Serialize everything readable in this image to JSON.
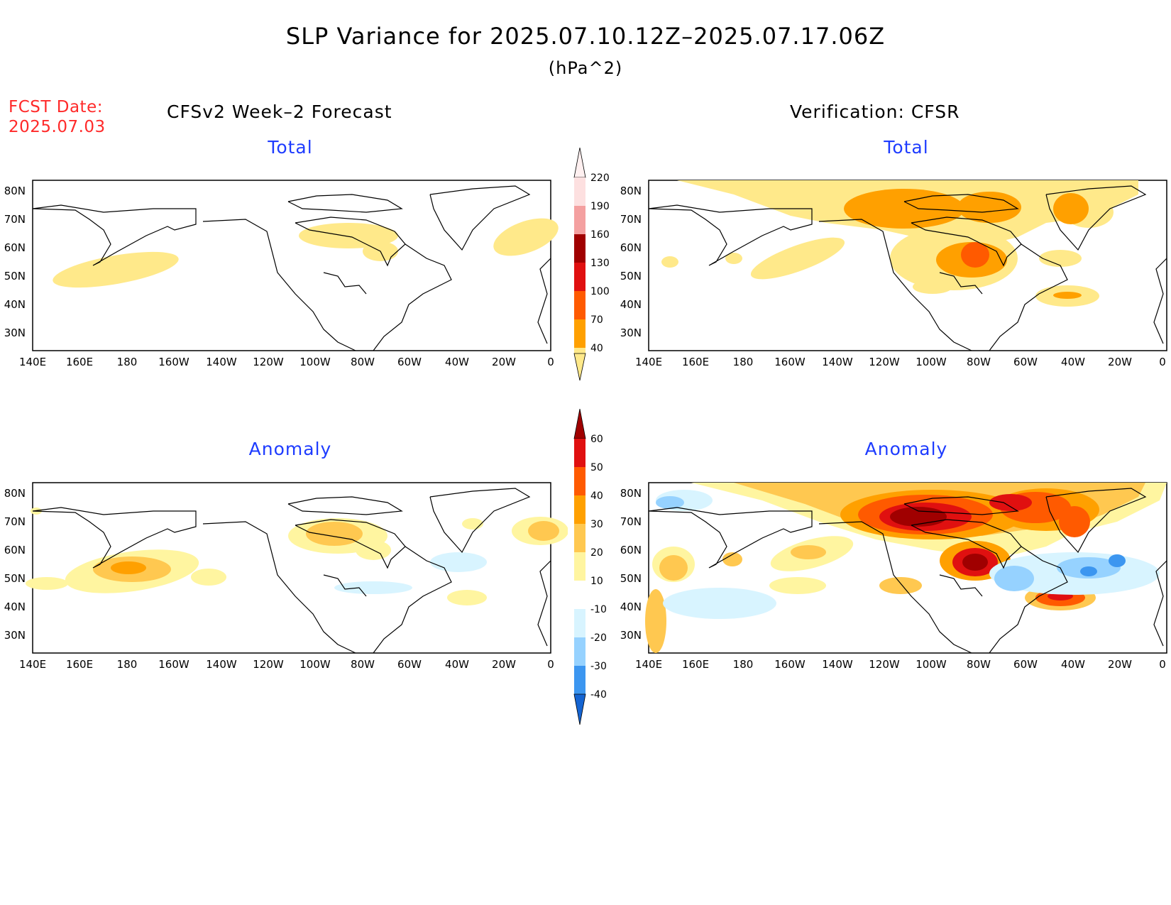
{
  "header": {
    "title": "SLP Variance for 2025.07.10.12Z–2025.07.17.06Z",
    "units": "(hPa^2)",
    "fcst_label": "FCST Date:",
    "fcst_date": "2025.07.03",
    "left_column": "CFSv2 Week–2 Forecast",
    "right_column": "Verification: CFSR"
  },
  "panels": {
    "fcst_total": "Total",
    "ver_total": "Total",
    "fcst_anom": "Anomaly",
    "ver_anom": "Anomaly"
  },
  "axes": {
    "lat_labels": [
      "80N",
      "70N",
      "60N",
      "50N",
      "40N",
      "30N"
    ],
    "lon_labels": [
      "140E",
      "160E",
      "180",
      "160W",
      "140W",
      "120W",
      "100W",
      "80W",
      "60W",
      "40W",
      "20W",
      "0"
    ]
  },
  "colorbars": {
    "total": {
      "levels": [
        "220",
        "190",
        "160",
        "130",
        "100",
        "70",
        "40"
      ],
      "colors": [
        "#fde0e0",
        "#f4a0a0",
        "#a00000",
        "#e01010",
        "#ff5a00",
        "#ffa000",
        "#ffe98a"
      ]
    },
    "anomaly": {
      "levels": [
        "60",
        "50",
        "40",
        "30",
        "20",
        "10",
        "-10",
        "-20",
        "-30",
        "-40"
      ],
      "colors": [
        "#a00000",
        "#e01010",
        "#ff5a00",
        "#ffa000",
        "#ffc850",
        "#fff5a0",
        "#ffffff",
        "#d8f4ff",
        "#96d2ff",
        "#3c96f0",
        "#1464d2"
      ]
    }
  },
  "chart_data": {
    "type": "heatmap",
    "title": "SLP Variance for 2025.07.10.12Z–2025.07.17.06Z",
    "units": "(hPa^2)",
    "lon_range": [
      "140E",
      "0"
    ],
    "lat_range": [
      "25N",
      "85N"
    ],
    "panels": [
      {
        "name": "CFSv2 Week–2 Forecast Total",
        "levels": [
          40,
          70,
          100,
          130,
          160,
          190,
          220
        ],
        "features": [
          "weak 40-70 over N Pacific near 180",
          "40-70 over Hudson Bay",
          "40-70 east of Greenland"
        ]
      },
      {
        "name": "Verification: CFSR Total",
        "levels": [
          40,
          70,
          100,
          130,
          160,
          190,
          220
        ],
        "features": [
          "broad 40-100 over Canadian Arctic and Greenland",
          "100-130 near Hudson Bay",
          "70-100 near 40W 45N"
        ]
      },
      {
        "name": "CFSv2 Week–2 Forecast Anomaly",
        "levels": [
          -40,
          -30,
          -20,
          -10,
          10,
          20,
          30,
          40,
          50,
          60
        ],
        "features": [
          "10-30 near 180 55N",
          "10-30 over Hudson Bay",
          "-10 to -20 south of Greenland"
        ]
      },
      {
        "name": "Verification: CFSR Anomaly",
        "levels": [
          -40,
          -30,
          -20,
          -10,
          10,
          20,
          30,
          40,
          50,
          60
        ],
        "features": [
          "50-60 over Canadian Arctic",
          "40-60 near Hudson Bay",
          "40-50 near 40W 45N",
          "-20 to -30 near 35W 55N"
        ]
      }
    ]
  }
}
